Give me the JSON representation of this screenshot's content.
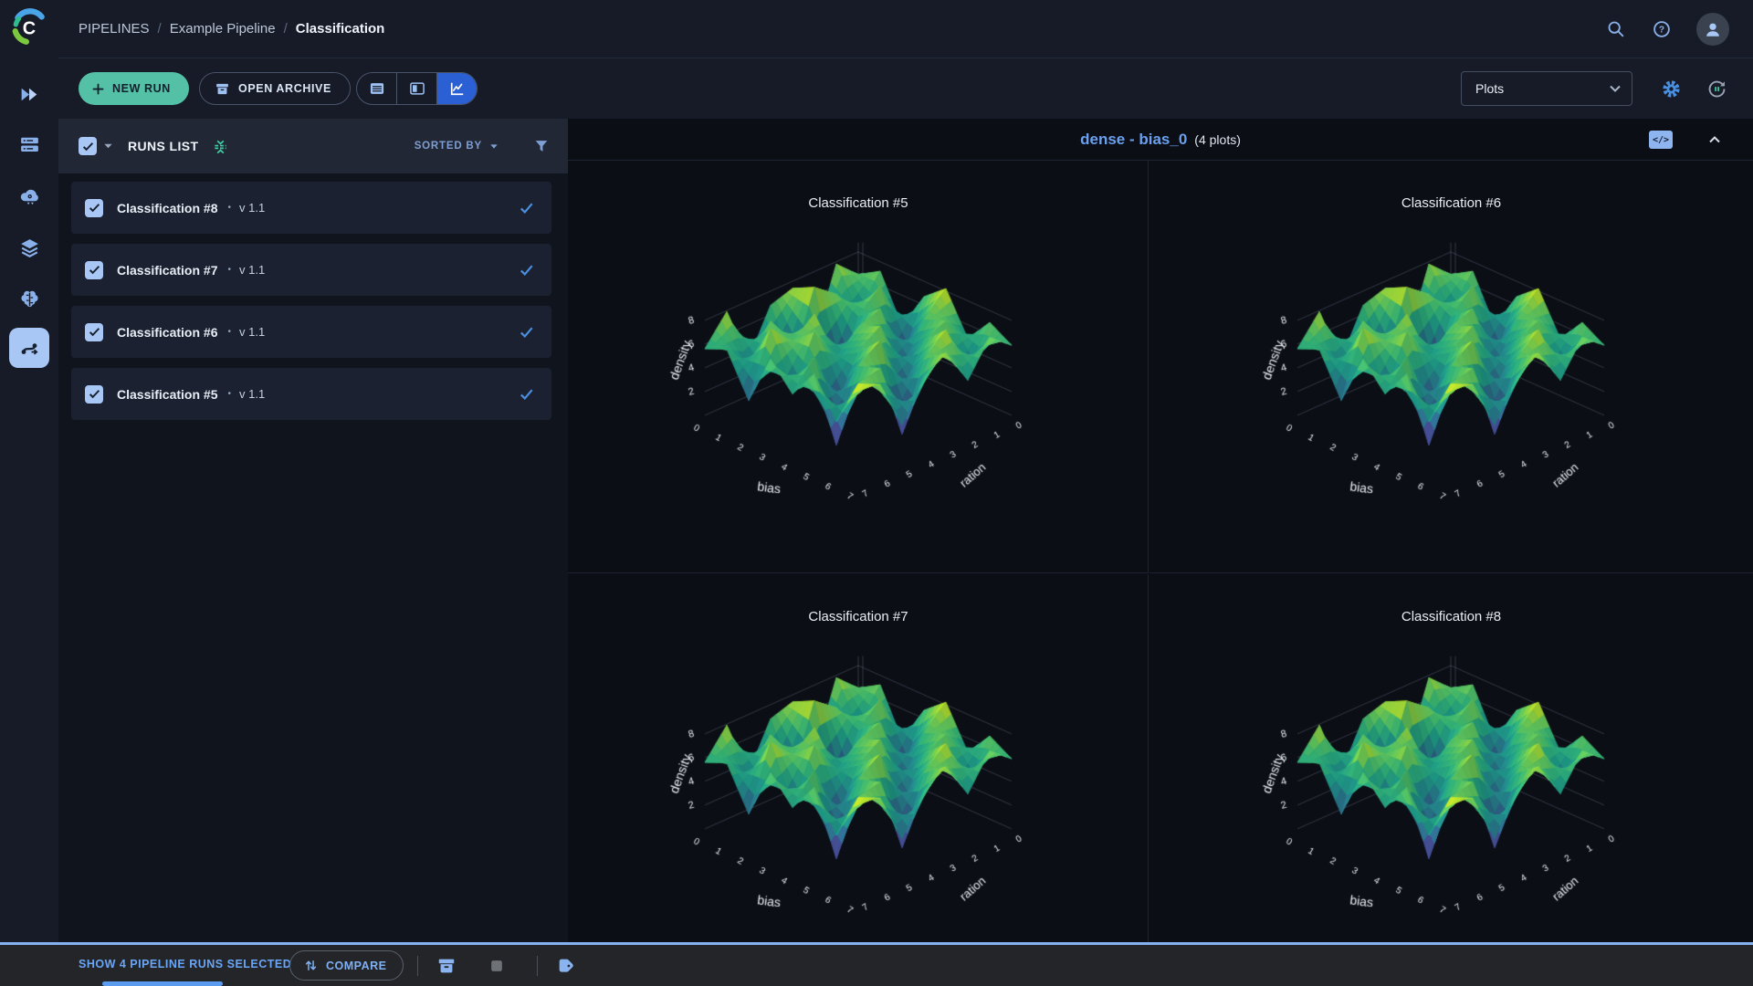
{
  "topbar": {
    "breadcrumb": [
      "PIPELINES",
      "Example Pipeline",
      "Classification"
    ],
    "separator": "/"
  },
  "sidebar": {
    "items": [
      "projects",
      "workers-queues",
      "cloud",
      "datasets",
      "models",
      "pipelines"
    ],
    "active": "pipelines"
  },
  "toolbar": {
    "new_run_label": "NEW RUN",
    "open_archive_label": "OPEN ARCHIVE",
    "view_modes": [
      "table-view",
      "split-view",
      "plots-view"
    ],
    "active_view": "plots-view",
    "metric_dropdown_value": "Plots"
  },
  "runs_panel": {
    "title": "RUNS LIST",
    "sorted_by_label": "SORTED BY",
    "bullet": "•",
    "runs": [
      {
        "name": "Classification #8",
        "version": "v 1.1",
        "selected": true
      },
      {
        "name": "Classification #7",
        "version": "v 1.1",
        "selected": true
      },
      {
        "name": "Classification #6",
        "version": "v 1.1",
        "selected": true
      },
      {
        "name": "Classification #5",
        "version": "v 1.1",
        "selected": true
      }
    ]
  },
  "plots_header": {
    "group_title": "dense - bias_0",
    "count_label": "(4 plots)",
    "code_icon_label": "</>"
  },
  "chart_data": {
    "type": "surface",
    "layout": "2x2-grid",
    "plots": [
      {
        "title": "Classification #5"
      },
      {
        "title": "Classification #6"
      },
      {
        "title": "Classification #7"
      },
      {
        "title": "Classification #8"
      }
    ],
    "x_axis": {
      "label": "bias",
      "ticks": [
        0,
        1,
        2,
        3,
        4,
        5,
        6,
        7
      ]
    },
    "y_axis": {
      "label": "ration",
      "ticks": [
        0,
        1,
        2,
        3,
        4,
        5,
        6,
        7
      ]
    },
    "z_axis": {
      "label": "density",
      "ticks": [
        2,
        4,
        6,
        8
      ],
      "range": [
        0,
        8.5
      ]
    },
    "colorscale": "viridis",
    "z_values": [
      [
        6.1,
        7.8,
        2.2,
        7.4,
        6.8,
        3.1,
        7.9,
        5.6
      ],
      [
        7.2,
        4.5,
        6.9,
        8.3,
        2.6,
        7.1,
        4.2,
        6.4
      ],
      [
        3.4,
        7.6,
        5.8,
        0.7,
        7.7,
        6.2,
        8.1,
        2.9
      ],
      [
        6.7,
        2.1,
        7.3,
        6.6,
        4.9,
        7.8,
        3.6,
        7.2
      ],
      [
        8.2,
        6.4,
        3.0,
        7.5,
        6.1,
        2.4,
        7.4,
        5.1
      ],
      [
        4.8,
        7.1,
        6.2,
        2.8,
        7.9,
        6.6,
        0.8,
        7.6
      ],
      [
        7.0,
        3.7,
        8.0,
        6.3,
        0.9,
        7.2,
        6.8,
        4.4
      ],
      [
        5.9,
        7.4,
        4.6,
        7.7,
        6.5,
        3.3,
        7.5,
        8.4
      ]
    ]
  },
  "bottom_bar": {
    "selection_text": "SHOW 4 PIPELINE RUNS SELECTED",
    "compare_label": "COMPARE"
  },
  "colors": {
    "accent_blue": "#4a90e2",
    "light_blue": "#a9c7f5",
    "teal_button": "#54c1a6",
    "link_blue": "#6aa0ee",
    "selection_blue": "#84b2f2",
    "bg_dark": "#0c0e16",
    "panel_dark": "#161b27"
  }
}
